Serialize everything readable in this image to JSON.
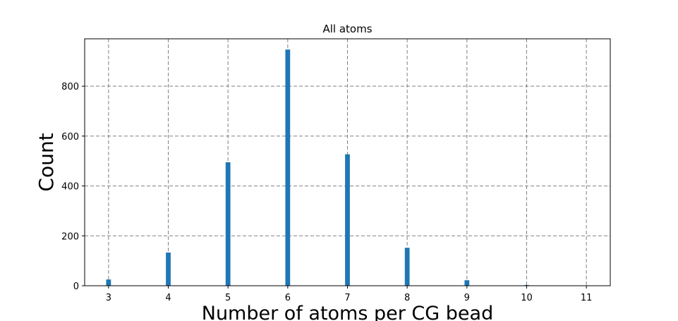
{
  "chart_data": {
    "type": "bar",
    "title": "All atoms",
    "xlabel": "Number of atoms per CG bead",
    "ylabel": "Count",
    "x": [
      3,
      4,
      5,
      6,
      7,
      8,
      9,
      10
    ],
    "values": [
      25,
      133,
      495,
      947,
      527,
      152,
      22,
      3
    ],
    "xlim": [
      2.6,
      11.4
    ],
    "ylim": [
      0,
      990
    ],
    "xticks": [
      3,
      4,
      5,
      6,
      7,
      8,
      9,
      10,
      11
    ],
    "yticks": [
      0,
      200,
      400,
      600,
      800
    ],
    "grid": true,
    "bar_color": "#1f77b4",
    "grid_color": "#808080"
  }
}
